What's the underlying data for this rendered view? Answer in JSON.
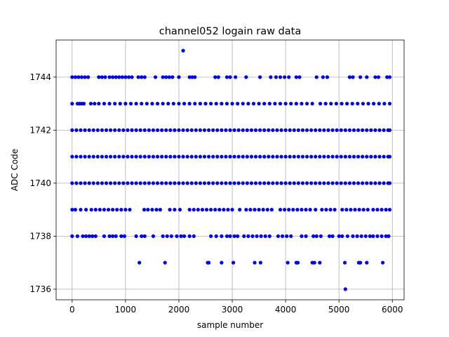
{
  "chart_data": {
    "type": "scatter",
    "title": "channel052 logain raw data",
    "xlabel": "sample number",
    "ylabel": "ADC Code",
    "xlim": [
      -300,
      6220
    ],
    "ylim": [
      1735.6,
      1745.4
    ],
    "grid": true,
    "marker_color": "#0000ff",
    "x_ticks": [
      0,
      1000,
      2000,
      3000,
      4000,
      5000,
      6000
    ],
    "x_tick_labels": [
      "0",
      "1000",
      "2000",
      "3000",
      "4000",
      "5000",
      "6000"
    ],
    "y_ticks": [
      1736,
      1738,
      1740,
      1742,
      1744
    ],
    "y_tick_labels": [
      "1736",
      "1738",
      "1740",
      "1742",
      "1744"
    ],
    "series": [
      {
        "values_by_level": [
          {
            "y": 1745,
            "x": [
              2080
            ]
          },
          {
            "y": 1744,
            "x": [
              0,
              60,
              120,
              180,
              240,
              300,
              500,
              560,
              620,
              700,
              760,
              820,
              880,
              940,
              1000,
              1060,
              1120,
              1240,
              1300,
              1360,
              1560,
              1700,
              1760,
              1820,
              1880,
              2000,
              2200,
              2250,
              2300,
              2680,
              2740,
              2900,
              2960,
              3060,
              3260,
              3520,
              3720,
              3820,
              3900,
              3980,
              4060,
              4200,
              4260,
              4580,
              4700,
              4780,
              5200,
              5260,
              5400,
              5520,
              5680,
              5740,
              5900,
              5950
            ]
          },
          {
            "y": 1743,
            "x": [
              0,
              100,
              140,
              180,
              220,
              350,
              420,
              500,
              600,
              700,
              800,
              900,
              1000,
              1100,
              1200,
              1300,
              1400,
              1500,
              1600,
              1700,
              1800,
              1900,
              2000,
              2100,
              2200,
              2300,
              2400,
              2500,
              2600,
              2700,
              2800,
              2900,
              3000,
              3100,
              3200,
              3300,
              3400,
              3500,
              3600,
              3700,
              3800,
              3900,
              4000,
              4100,
              4200,
              4300,
              4400,
              4500,
              4650,
              4750,
              4850,
              4950,
              5050,
              5150,
              5250,
              5350,
              5450,
              5550,
              5650,
              5750,
              5850,
              5950
            ]
          },
          {
            "y": 1742,
            "x": [
              0,
              80,
              160,
              240,
              320,
              400,
              480,
              560,
              640,
              720,
              800,
              880,
              960,
              1040,
              1120,
              1200,
              1280,
              1360,
              1440,
              1520,
              1600,
              1680,
              1760,
              1840,
              1920,
              2000,
              2080,
              2160,
              2240,
              2320,
              2400,
              2480,
              2560,
              2640,
              2720,
              2800,
              2880,
              2960,
              3040,
              3120,
              3200,
              3280,
              3360,
              3440,
              3520,
              3600,
              3680,
              3760,
              3840,
              3920,
              4000,
              4080,
              4160,
              4240,
              4320,
              4400,
              4480,
              4560,
              4640,
              4720,
              4800,
              4880,
              4960,
              5040,
              5120,
              5200,
              5280,
              5360,
              5440,
              5520,
              5600,
              5680,
              5760,
              5840,
              5920,
              5950
            ]
          },
          {
            "y": 1741,
            "x": [
              0,
              80,
              160,
              240,
              320,
              400,
              480,
              560,
              640,
              720,
              800,
              880,
              960,
              1040,
              1120,
              1200,
              1280,
              1360,
              1440,
              1520,
              1600,
              1680,
              1760,
              1840,
              1920,
              2000,
              2080,
              2160,
              2240,
              2320,
              2400,
              2480,
              2560,
              2640,
              2720,
              2800,
              2880,
              2960,
              3040,
              3120,
              3200,
              3280,
              3360,
              3440,
              3520,
              3600,
              3680,
              3760,
              3840,
              3920,
              4000,
              4080,
              4160,
              4240,
              4320,
              4400,
              4480,
              4560,
              4640,
              4720,
              4800,
              4880,
              4960,
              5040,
              5120,
              5200,
              5280,
              5360,
              5440,
              5520,
              5600,
              5680,
              5760,
              5840,
              5920,
              5950
            ]
          },
          {
            "y": 1740,
            "x": [
              0,
              80,
              160,
              240,
              320,
              400,
              480,
              560,
              640,
              720,
              800,
              880,
              960,
              1040,
              1120,
              1200,
              1280,
              1360,
              1440,
              1520,
              1600,
              1680,
              1760,
              1840,
              1920,
              2000,
              2080,
              2160,
              2240,
              2320,
              2400,
              2480,
              2560,
              2640,
              2720,
              2800,
              2880,
              2960,
              3040,
              3120,
              3200,
              3280,
              3360,
              3440,
              3520,
              3600,
              3680,
              3760,
              3840,
              3920,
              4000,
              4080,
              4160,
              4240,
              4320,
              4400,
              4480,
              4560,
              4640,
              4720,
              4800,
              4880,
              4960,
              5040,
              5120,
              5200,
              5280,
              5360,
              5440,
              5520,
              5600,
              5680,
              5760,
              5840,
              5920,
              5950
            ]
          },
          {
            "y": 1739,
            "x": [
              0,
              60,
              160,
              260,
              360,
              440,
              520,
              600,
              680,
              760,
              840,
              920,
              1000,
              1080,
              1350,
              1420,
              1500,
              1580,
              1650,
              1830,
              1920,
              2020,
              2200,
              2280,
              2360,
              2440,
              2520,
              2600,
              2680,
              2760,
              2840,
              2920,
              3000,
              3140,
              3260,
              3340,
              3420,
              3500,
              3580,
              3660,
              3740,
              3900,
              3980,
              4060,
              4140,
              4220,
              4300,
              4380,
              4460,
              4560,
              4680,
              4760,
              4840,
              4920,
              5060,
              5140,
              5220,
              5300,
              5380,
              5460,
              5540,
              5640,
              5720,
              5800,
              5880,
              5950
            ]
          },
          {
            "y": 1738,
            "x": [
              0,
              100,
              200,
              260,
              320,
              380,
              440,
              600,
              700,
              760,
              820,
              920,
              980,
              1200,
              1300,
              1360,
              1520,
              1700,
              1780,
              1860,
              1960,
              2040,
              2100,
              2200,
              2280,
              2600,
              2700,
              2800,
              2900,
              2960,
              3040,
              3100,
              3220,
              3300,
              3380,
              3460,
              3540,
              3620,
              3700,
              3860,
              3940,
              4020,
              4100,
              4300,
              4380,
              4520,
              4580,
              4660,
              4820,
              4880,
              5000,
              5060,
              5160,
              5260,
              5340,
              5420,
              5500,
              5580,
              5640,
              5720,
              5800,
              5880,
              5930
            ]
          },
          {
            "y": 1737,
            "x": [
              1260,
              1740,
              2540,
              2560,
              2800,
              3020,
              3420,
              3530,
              4040,
              4200,
              4230,
              4500,
              4540,
              4640,
              5110,
              5370,
              5400,
              5520,
              5820
            ]
          },
          {
            "y": 1736,
            "x": [
              5120
            ]
          }
        ]
      }
    ]
  }
}
